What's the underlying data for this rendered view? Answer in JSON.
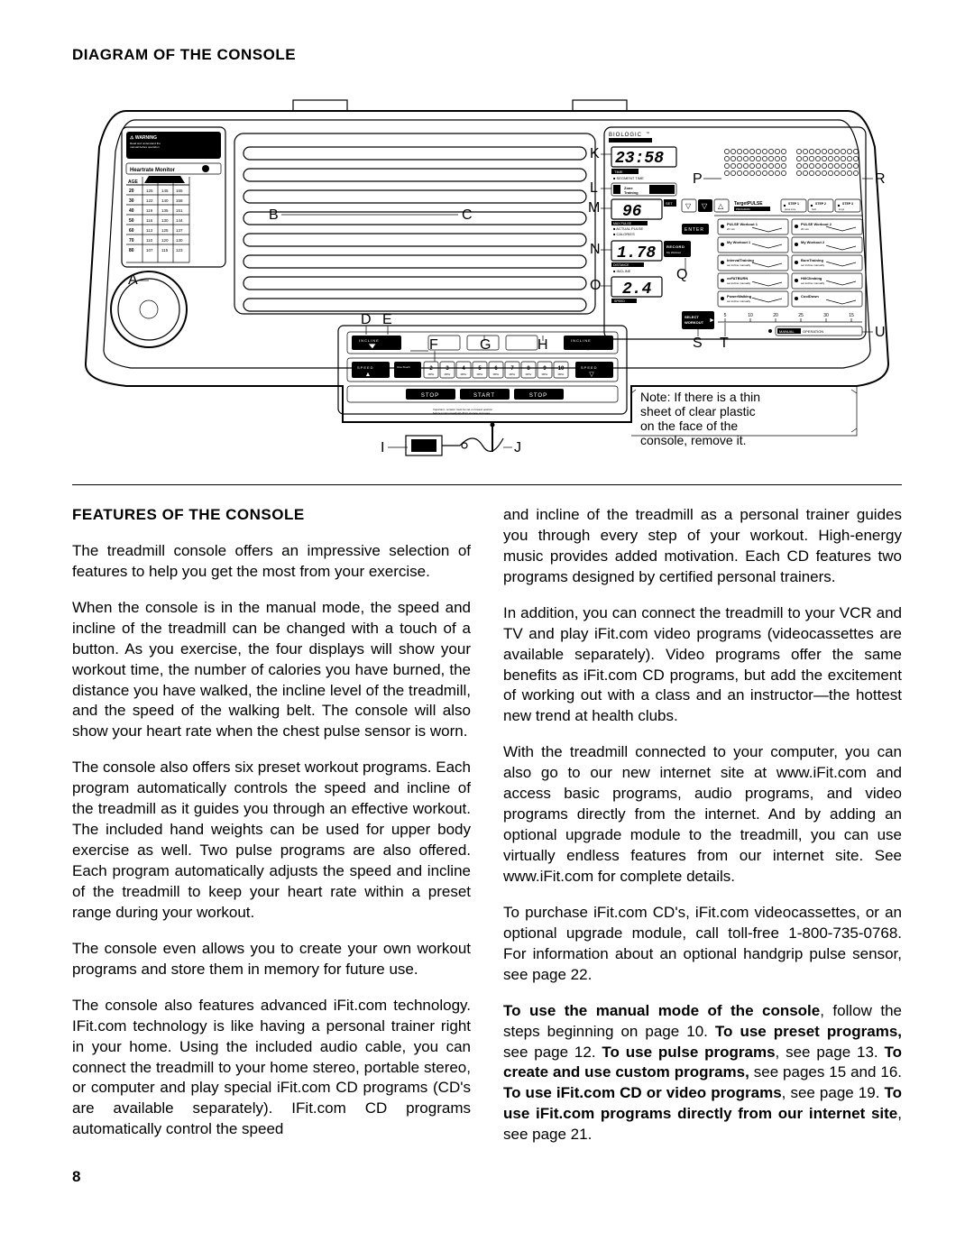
{
  "page_number": "8",
  "heading_diagram": "DIAGRAM OF THE CONSOLE",
  "heading_features": "FEATURES OF THE CONSOLE",
  "note_text": "Note: If there is a thin sheet of clear plastic on the face of the console, remove it.",
  "diagram": {
    "labels": [
      "A",
      "B",
      "C",
      "D",
      "E",
      "F",
      "G",
      "H",
      "I",
      "J",
      "K",
      "L",
      "M",
      "N",
      "O",
      "P",
      "Q",
      "R",
      "S",
      "T",
      "U"
    ],
    "brand": "BIOLOGIC",
    "display_time": "23:58",
    "display_pulse": "96",
    "display_distance": "1.78",
    "display_speed": "2.4",
    "panel_labels": {
      "time": "TIME",
      "segment_time": "SEGMENT TIME",
      "zone_training": "Zone Training",
      "max_pulse": "MAX PULSE",
      "actual_pulse": "ACTUAL PULSE",
      "calories": "CALORIES",
      "distance": "DISTANCE",
      "incline": "INCLINE",
      "speed": "SPEED",
      "target_pulse": "TargetPULSE",
      "step1": "STEP 1",
      "step2": "STEP 2",
      "step3": "STEP 3",
      "pulse_workout1": "PULSE Workout 1",
      "pulse_workout2": "PULSE Workout 2",
      "my_workout1": "My Workout 1",
      "my_workout2": "My Workout 2",
      "record": "RECORD",
      "enter": "ENTER",
      "select_workout": "SELECT WORKOUT",
      "manual_operation": "MANUAL OPERATION",
      "warning": "WARNING",
      "heartrate_monitor": "Heartrate Monitor",
      "age": "AGE",
      "ages": [
        "20",
        "30",
        "40",
        "50",
        "60",
        "70",
        "80"
      ],
      "incline_btn": "INCLINE",
      "speed_btn": "SPEED",
      "stop": "STOP",
      "start": "START",
      "speeds": [
        "2",
        "3",
        "4",
        "5",
        "6",
        "7",
        "8",
        "9",
        "10"
      ],
      "mph": "MPH",
      "timer_vals": [
        "5",
        "10",
        "20",
        "25",
        "30",
        "15"
      ]
    }
  },
  "body": {
    "left": [
      "The treadmill console offers an impressive selection of features to help you get the most from your exercise.",
      "When the console is in the manual mode, the speed and incline of the treadmill can be changed with a touch of a button. As you exercise, the four displays will show your workout time, the number of calories you have burned, the distance you have walked, the incline level of the treadmill, and the speed of the walking belt. The console will also show your heart rate when the chest pulse sensor is worn.",
      "The console also offers six preset workout programs. Each program automatically controls the speed and incline of the treadmill as it guides you through an effective workout. The included hand weights can be used for upper body exercise as well. Two pulse programs are also offered. Each program automatically adjusts the speed and incline of the treadmill to keep your heart rate within a preset range during your workout.",
      "The console even allows you to create your own workout programs and store them in memory for future use.",
      "The console also features advanced iFit.com technology. IFit.com technology is like having a personal trainer right in your home. Using the included audio cable, you can connect the treadmill to your home stereo, portable stereo, or computer and play special iFit.com CD programs (CD's are available separately). IFit.com CD programs automatically control the speed"
    ],
    "right": [
      "and incline of the treadmill as a personal trainer guides you through every step of your workout. High-energy music provides added motivation. Each CD features two programs designed by certified personal trainers.",
      "In addition, you can connect the treadmill to your VCR and TV and play iFit.com video programs (videocassettes are available separately). Video programs offer the same benefits as iFit.com CD programs, but add the excitement of working out with a class and an instructor—the hottest new trend at health clubs.",
      "With the treadmill connected to your computer, you can also go to our new internet site at www.iFit.com and access basic programs, audio programs, and video programs directly from the internet. And by adding an optional upgrade module to the treadmill, you can use virtually endless features from our internet site. See www.iFit.com for complete details.",
      "To purchase iFit.com CD's, iFit.com videocassettes, or an optional upgrade module, call toll-free 1-800-735-0768. For information about an optional handgrip pulse sensor, see page 22."
    ],
    "right_final_html": "<span class=\"bold\">To use the manual mode of the console</span>, follow the steps beginning on page 10. <span class=\"bold\">To use preset programs,</span> see page 12. <span class=\"bold\">To use pulse programs</span>, see page 13. <span class=\"bold\">To create and use custom programs,</span> see pages 15 and 16. <span class=\"bold\">To use iFit.com CD or video programs</span>, see page 19. <span class=\"bold\">To use iFit.com programs directly from our internet site</span>, see page 21."
  }
}
